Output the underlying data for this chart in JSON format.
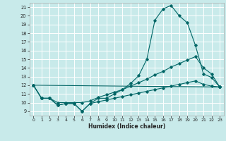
{
  "xlabel": "Humidex (Indice chaleur)",
  "bg_color": "#c8eaea",
  "grid_color": "#ffffff",
  "line_color": "#006666",
  "xlim": [
    -0.5,
    23.5
  ],
  "ylim": [
    8.5,
    21.5
  ],
  "xticks": [
    0,
    1,
    2,
    3,
    4,
    5,
    6,
    7,
    8,
    9,
    10,
    11,
    12,
    13,
    14,
    15,
    16,
    17,
    18,
    19,
    20,
    21,
    22,
    23
  ],
  "yticks": [
    9,
    10,
    11,
    12,
    13,
    14,
    15,
    16,
    17,
    18,
    19,
    20,
    21
  ],
  "line1_x": [
    0,
    1,
    2,
    3,
    4,
    5,
    6,
    7,
    8,
    9,
    10,
    11,
    12,
    13,
    14,
    15,
    16,
    17,
    18,
    19,
    20,
    21,
    22,
    23
  ],
  "line1_y": [
    12.0,
    10.5,
    10.5,
    9.7,
    9.9,
    9.9,
    9.0,
    9.9,
    10.5,
    10.5,
    11.0,
    11.5,
    12.2,
    13.1,
    15.0,
    19.5,
    20.8,
    21.2,
    20.0,
    19.2,
    16.6,
    13.3,
    12.9,
    11.8
  ],
  "line2_x": [
    0,
    23
  ],
  "line2_y": [
    12.0,
    11.8
  ],
  "line3_x": [
    0,
    1,
    2,
    3,
    4,
    5,
    6,
    7,
    8,
    9,
    10,
    11,
    12,
    13,
    14,
    15,
    16,
    17,
    18,
    19,
    20,
    21,
    22,
    23
  ],
  "line3_y": [
    12.0,
    10.5,
    10.5,
    10.0,
    10.0,
    10.0,
    10.0,
    10.2,
    10.6,
    10.9,
    11.2,
    11.5,
    11.9,
    12.3,
    12.7,
    13.2,
    13.6,
    14.1,
    14.5,
    14.9,
    15.3,
    14.0,
    13.3,
    11.8
  ],
  "line4_x": [
    0,
    1,
    2,
    3,
    4,
    5,
    6,
    7,
    8,
    9,
    10,
    11,
    12,
    13,
    14,
    15,
    16,
    17,
    18,
    19,
    20,
    21,
    22,
    23
  ],
  "line4_y": [
    12.0,
    10.5,
    10.5,
    9.7,
    9.9,
    9.9,
    9.0,
    9.9,
    10.1,
    10.3,
    10.5,
    10.7,
    10.9,
    11.1,
    11.3,
    11.5,
    11.7,
    11.9,
    12.1,
    12.3,
    12.5,
    12.1,
    11.9,
    11.8
  ]
}
